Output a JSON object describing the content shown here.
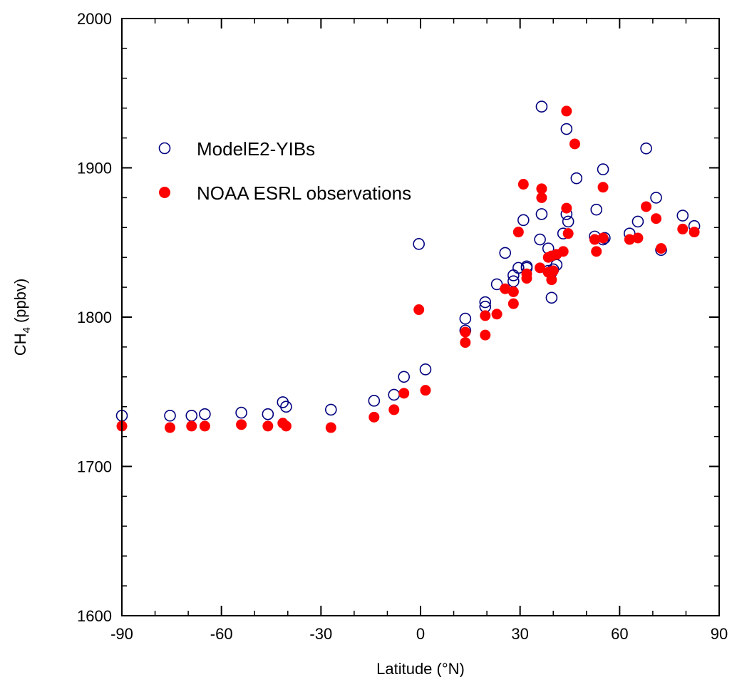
{
  "chart_data": {
    "type": "scatter",
    "title": "",
    "xlabel": "Latitude (°N)",
    "ylabel_main": "CH",
    "ylabel_sub": "4",
    "ylabel_unit": " (ppbv)",
    "xlim": [
      -90,
      90
    ],
    "ylim": [
      1600,
      2000
    ],
    "x_ticks": [
      -90,
      -60,
      -30,
      0,
      30,
      60,
      90
    ],
    "y_ticks": [
      1600,
      1700,
      1800,
      1900,
      2000
    ],
    "x_minor_step": 10,
    "y_minor_step": 20,
    "grid": false,
    "legend_position": "upper-left",
    "series": [
      {
        "name": "ModelE2-YIBs",
        "marker": "open-circle",
        "color": "#00007f",
        "points": [
          [
            -90,
            1734
          ],
          [
            -75.5,
            1734
          ],
          [
            -69,
            1734
          ],
          [
            -65,
            1735
          ],
          [
            -54,
            1736
          ],
          [
            -46,
            1735
          ],
          [
            -41.5,
            1743
          ],
          [
            -40.5,
            1740
          ],
          [
            -27,
            1738
          ],
          [
            -14,
            1744
          ],
          [
            -8,
            1748
          ],
          [
            -5,
            1760
          ],
          [
            -0.5,
            1849
          ],
          [
            1.5,
            1765
          ],
          [
            13.5,
            1799
          ],
          [
            13.5,
            1791
          ],
          [
            19.5,
            1810
          ],
          [
            19.5,
            1807
          ],
          [
            23,
            1822
          ],
          [
            25.5,
            1843
          ],
          [
            28,
            1828
          ],
          [
            28,
            1824
          ],
          [
            29.5,
            1833
          ],
          [
            31,
            1865
          ],
          [
            32,
            1834
          ],
          [
            32,
            1833
          ],
          [
            36,
            1852
          ],
          [
            36.5,
            1869
          ],
          [
            36.5,
            1941
          ],
          [
            38.5,
            1831
          ],
          [
            38.5,
            1846
          ],
          [
            39.5,
            1830
          ],
          [
            39.5,
            1813
          ],
          [
            40,
            1832
          ],
          [
            41,
            1835
          ],
          [
            43,
            1856
          ],
          [
            44,
            1926
          ],
          [
            44,
            1869
          ],
          [
            44.5,
            1864
          ],
          [
            47,
            1893
          ],
          [
            52.5,
            1854
          ],
          [
            53,
            1872
          ],
          [
            55,
            1852
          ],
          [
            55,
            1899
          ],
          [
            55.5,
            1853
          ],
          [
            63,
            1856
          ],
          [
            65.5,
            1864
          ],
          [
            68,
            1913
          ],
          [
            71,
            1880
          ],
          [
            72.5,
            1845
          ],
          [
            79,
            1868
          ],
          [
            82.5,
            1861
          ]
        ]
      },
      {
        "name": "NOAA ESRL observations",
        "marker": "filled-circle",
        "color": "#ff0000",
        "points": [
          [
            -90,
            1727
          ],
          [
            -75.5,
            1726
          ],
          [
            -69,
            1727
          ],
          [
            -65,
            1727
          ],
          [
            -54,
            1728
          ],
          [
            -46,
            1727
          ],
          [
            -41.5,
            1729
          ],
          [
            -40.5,
            1727
          ],
          [
            -27,
            1726
          ],
          [
            -14,
            1733
          ],
          [
            -8,
            1738
          ],
          [
            -5,
            1749
          ],
          [
            -0.5,
            1805
          ],
          [
            1.5,
            1751
          ],
          [
            13.5,
            1790
          ],
          [
            13.5,
            1783
          ],
          [
            19.5,
            1801
          ],
          [
            19.5,
            1788
          ],
          [
            23,
            1802
          ],
          [
            25.5,
            1819
          ],
          [
            28,
            1817
          ],
          [
            28,
            1809
          ],
          [
            29.5,
            1857
          ],
          [
            31,
            1889
          ],
          [
            32,
            1829
          ],
          [
            32,
            1826
          ],
          [
            36,
            1833
          ],
          [
            36.5,
            1880
          ],
          [
            36.5,
            1886
          ],
          [
            38.5,
            1830
          ],
          [
            38.5,
            1840
          ],
          [
            39.5,
            1841
          ],
          [
            39.5,
            1825
          ],
          [
            40,
            1831
          ],
          [
            41,
            1842
          ],
          [
            43,
            1844
          ],
          [
            44,
            1938
          ],
          [
            44,
            1873
          ],
          [
            44.5,
            1856
          ],
          [
            46.5,
            1916
          ],
          [
            52.5,
            1852
          ],
          [
            53,
            1844
          ],
          [
            55,
            1853
          ],
          [
            55,
            1887
          ],
          [
            63,
            1852
          ],
          [
            65.5,
            1853
          ],
          [
            68,
            1874
          ],
          [
            71,
            1866
          ],
          [
            72.5,
            1846
          ],
          [
            79,
            1859
          ],
          [
            82.5,
            1857
          ]
        ]
      }
    ]
  }
}
